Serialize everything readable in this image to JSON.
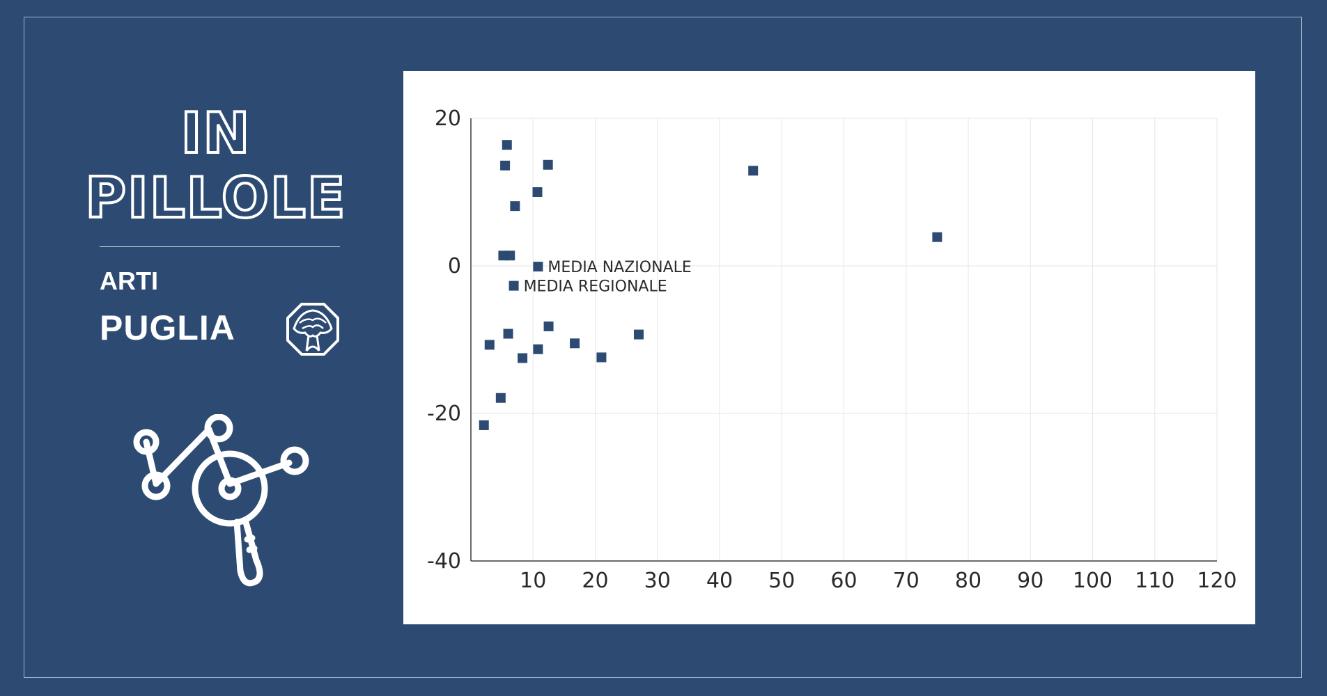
{
  "header": {
    "title_line1": "IN",
    "title_line2": "PILLOLE",
    "category": "ARTI",
    "region": "PUGLIA"
  },
  "icons": {
    "logo": "tree-octagon-icon",
    "illustration": "network-magnifier-icon"
  },
  "colors": {
    "background": "#2d4b72",
    "marker": "#2d4b72",
    "panel": "#ffffff",
    "grid": "#e6e6e6"
  },
  "chart_data": {
    "type": "scatter",
    "title": "",
    "xlabel": "",
    "ylabel": "",
    "xlim": [
      0,
      120
    ],
    "ylim": [
      -40,
      20
    ],
    "x_ticks": [
      10,
      20,
      30,
      40,
      50,
      60,
      70,
      80,
      90,
      100,
      110,
      120
    ],
    "y_ticks": [
      20,
      0,
      -20,
      -40
    ],
    "x_tick_labels": [
      "10",
      "20",
      "30",
      "40",
      "50",
      "60",
      "70",
      "80",
      "90",
      "100",
      "110",
      "120"
    ],
    "y_tick_labels": [
      "20",
      "0",
      "-20",
      "-40"
    ],
    "points": [
      {
        "x": 5.8,
        "y": 16.4,
        "label": ""
      },
      {
        "x": 5.5,
        "y": 13.6,
        "label": ""
      },
      {
        "x": 12.4,
        "y": 13.7,
        "label": ""
      },
      {
        "x": 10.7,
        "y": 10.0,
        "label": ""
      },
      {
        "x": 7.1,
        "y": 8.1,
        "label": ""
      },
      {
        "x": 45.4,
        "y": 12.9,
        "label": ""
      },
      {
        "x": 75.0,
        "y": 3.9,
        "label": ""
      },
      {
        "x": 5.2,
        "y": 1.4,
        "label": ""
      },
      {
        "x": 6.3,
        "y": 1.4,
        "label": ""
      },
      {
        "x": 10.8,
        "y": -0.1,
        "label": "MEDIA NAZIONALE"
      },
      {
        "x": 6.9,
        "y": -2.7,
        "label": "MEDIA REGIONALE"
      },
      {
        "x": 12.5,
        "y": -8.2,
        "label": ""
      },
      {
        "x": 6.0,
        "y": -9.2,
        "label": ""
      },
      {
        "x": 3.0,
        "y": -10.7,
        "label": ""
      },
      {
        "x": 10.8,
        "y": -11.3,
        "label": ""
      },
      {
        "x": 16.7,
        "y": -10.5,
        "label": ""
      },
      {
        "x": 27.0,
        "y": -9.3,
        "label": ""
      },
      {
        "x": 8.3,
        "y": -12.5,
        "label": ""
      },
      {
        "x": 21.0,
        "y": -12.4,
        "label": ""
      },
      {
        "x": 4.8,
        "y": -17.9,
        "label": ""
      },
      {
        "x": 2.1,
        "y": -21.6,
        "label": ""
      }
    ]
  }
}
